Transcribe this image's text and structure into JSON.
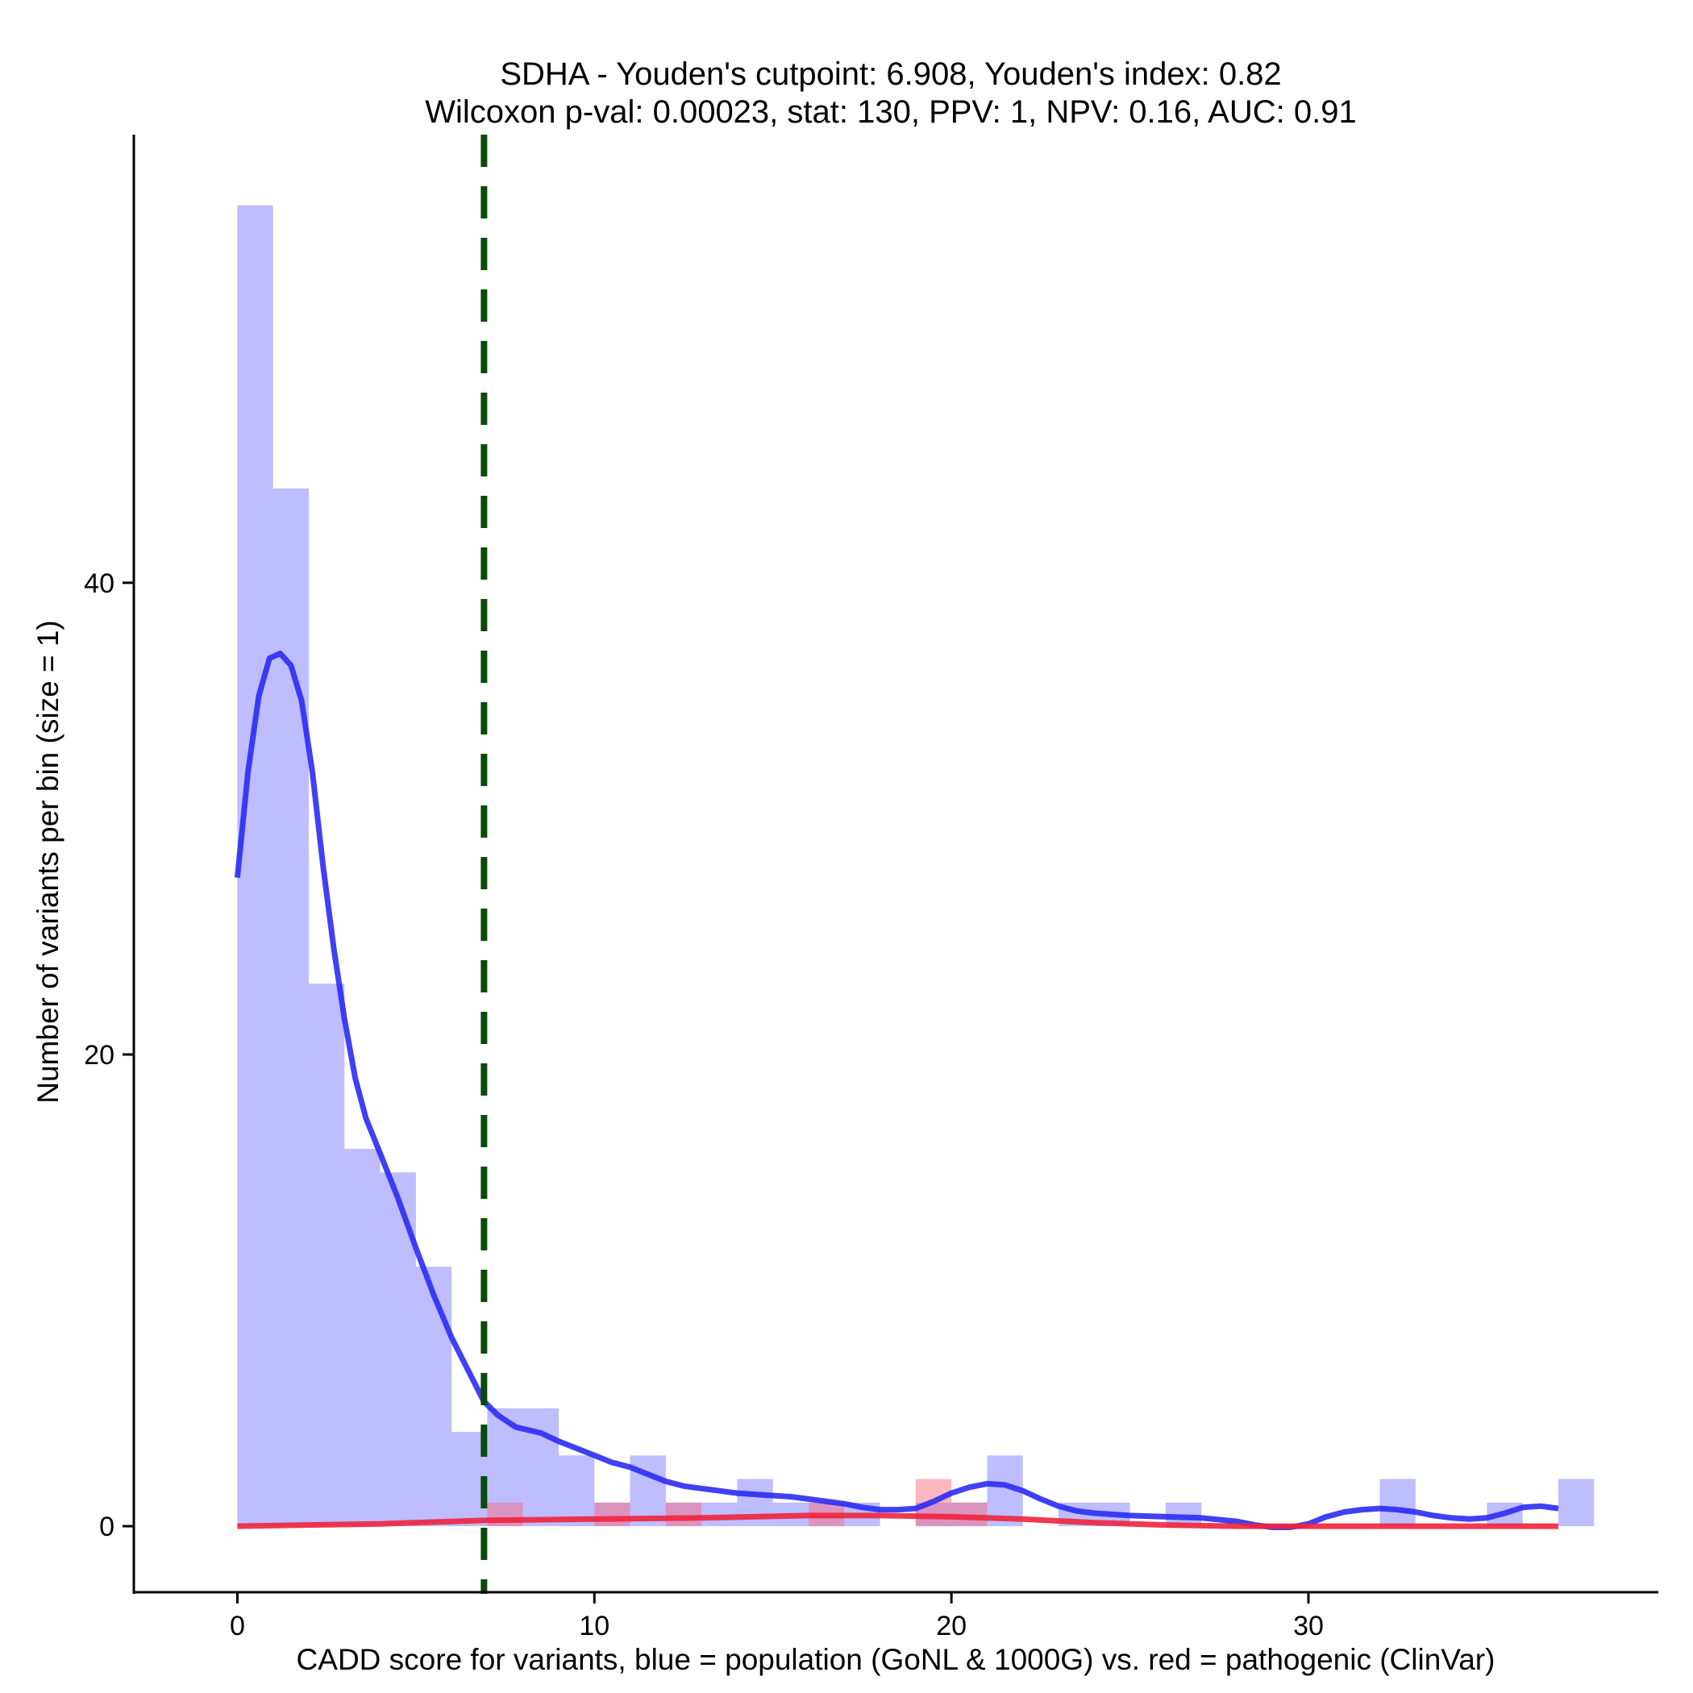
{
  "chart_data": {
    "type": "histogram",
    "title": "SDHA - Youden's cutpoint: 6.908, Youden's index: 0.82",
    "subtitle": "Wilcoxon p-val: 0.00023, stat: 130, PPV: 1, NPV: 0.16, AUC: 0.91",
    "xlabel": "CADD score for variants, blue = population (GoNL & 1000G) vs. red = pathogenic (ClinVar)",
    "ylabel": "Number of variants per bin (size = 1)",
    "xlim": [
      -2.9,
      39.8
    ],
    "ylim": [
      -2.8,
      59
    ],
    "x_ticks": [
      0,
      10,
      20,
      30
    ],
    "y_ticks": [
      0,
      20,
      40
    ],
    "cutpoint": {
      "x": 6.908,
      "color": "#0a4a0a",
      "style": "dashed"
    },
    "series": [
      {
        "name": "population (GoNL & 1000G)",
        "color": "#7b7bff",
        "bins": [
          {
            "x0": 0,
            "x1": 1,
            "count": 56
          },
          {
            "x0": 1,
            "x1": 2,
            "count": 44
          },
          {
            "x0": 2,
            "x1": 3,
            "count": 23
          },
          {
            "x0": 3,
            "x1": 4,
            "count": 16
          },
          {
            "x0": 4,
            "x1": 5,
            "count": 15
          },
          {
            "x0": 5,
            "x1": 6,
            "count": 11
          },
          {
            "x0": 6,
            "x1": 7,
            "count": 4
          },
          {
            "x0": 7,
            "x1": 8,
            "count": 5
          },
          {
            "x0": 8,
            "x1": 9,
            "count": 5
          },
          {
            "x0": 9,
            "x1": 10,
            "count": 3
          },
          {
            "x0": 10,
            "x1": 11,
            "count": 1
          },
          {
            "x0": 11,
            "x1": 12,
            "count": 3
          },
          {
            "x0": 12,
            "x1": 13,
            "count": 1
          },
          {
            "x0": 13,
            "x1": 14,
            "count": 1
          },
          {
            "x0": 14,
            "x1": 15,
            "count": 2
          },
          {
            "x0": 15,
            "x1": 16,
            "count": 1
          },
          {
            "x0": 16,
            "x1": 17,
            "count": 1
          },
          {
            "x0": 17,
            "x1": 18,
            "count": 1
          },
          {
            "x0": 19,
            "x1": 20,
            "count": 1
          },
          {
            "x0": 20,
            "x1": 21,
            "count": 1
          },
          {
            "x0": 21,
            "x1": 22,
            "count": 3
          },
          {
            "x0": 23,
            "x1": 24,
            "count": 1
          },
          {
            "x0": 24,
            "x1": 25,
            "count": 1
          },
          {
            "x0": 26,
            "x1": 27,
            "count": 1
          },
          {
            "x0": 32,
            "x1": 33,
            "count": 2
          },
          {
            "x0": 35,
            "x1": 36,
            "count": 1
          },
          {
            "x0": 37,
            "x1": 38,
            "count": 2
          }
        ],
        "density_curve": [
          [
            0,
            27.5
          ],
          [
            0.3,
            32
          ],
          [
            0.6,
            35.2
          ],
          [
            0.9,
            36.8
          ],
          [
            1.2,
            37
          ],
          [
            1.5,
            36.5
          ],
          [
            1.8,
            35
          ],
          [
            2.1,
            32
          ],
          [
            2.4,
            28
          ],
          [
            2.7,
            24.5
          ],
          [
            3.0,
            21.5
          ],
          [
            3.3,
            19
          ],
          [
            3.6,
            17.3
          ],
          [
            4.0,
            15.8
          ],
          [
            4.5,
            13.9
          ],
          [
            5.0,
            11.8
          ],
          [
            5.5,
            9.8
          ],
          [
            6.0,
            8
          ],
          [
            6.5,
            6.5
          ],
          [
            6.9,
            5.3
          ],
          [
            7.3,
            4.7
          ],
          [
            7.8,
            4.2
          ],
          [
            8.5,
            3.95
          ],
          [
            9.0,
            3.6
          ],
          [
            9.5,
            3.3
          ],
          [
            10.0,
            3.0
          ],
          [
            10.5,
            2.7
          ],
          [
            11.0,
            2.5
          ],
          [
            11.5,
            2.2
          ],
          [
            12.0,
            1.9
          ],
          [
            12.5,
            1.7
          ],
          [
            13.0,
            1.6
          ],
          [
            13.5,
            1.5
          ],
          [
            14.0,
            1.4
          ],
          [
            14.5,
            1.35
          ],
          [
            15.0,
            1.3
          ],
          [
            15.5,
            1.25
          ],
          [
            16.0,
            1.15
          ],
          [
            16.5,
            1.05
          ],
          [
            17.0,
            0.95
          ],
          [
            17.5,
            0.8
          ],
          [
            18.0,
            0.7
          ],
          [
            18.5,
            0.7
          ],
          [
            19.0,
            0.75
          ],
          [
            19.5,
            1.05
          ],
          [
            20.0,
            1.4
          ],
          [
            20.5,
            1.65
          ],
          [
            21.0,
            1.8
          ],
          [
            21.5,
            1.75
          ],
          [
            22.0,
            1.5
          ],
          [
            22.5,
            1.15
          ],
          [
            23.0,
            0.85
          ],
          [
            23.5,
            0.65
          ],
          [
            24.0,
            0.55
          ],
          [
            25.0,
            0.45
          ],
          [
            26.0,
            0.4
          ],
          [
            27.0,
            0.35
          ],
          [
            28.0,
            0.2
          ],
          [
            28.5,
            0.05
          ],
          [
            29.0,
            -0.05
          ],
          [
            29.5,
            -0.05
          ],
          [
            30.0,
            0.1
          ],
          [
            30.5,
            0.4
          ],
          [
            31.0,
            0.6
          ],
          [
            31.5,
            0.7
          ],
          [
            32.0,
            0.75
          ],
          [
            32.5,
            0.7
          ],
          [
            33.0,
            0.6
          ],
          [
            33.5,
            0.45
          ],
          [
            34.0,
            0.35
          ],
          [
            34.5,
            0.3
          ],
          [
            35.0,
            0.35
          ],
          [
            35.5,
            0.55
          ],
          [
            36.0,
            0.8
          ],
          [
            36.5,
            0.85
          ],
          [
            37.0,
            0.75
          ]
        ]
      },
      {
        "name": "pathogenic (ClinVar)",
        "color": "#ff6070",
        "bins": [
          {
            "x0": 7,
            "x1": 8,
            "count": 1
          },
          {
            "x0": 10,
            "x1": 11,
            "count": 1
          },
          {
            "x0": 12,
            "x1": 13,
            "count": 1
          },
          {
            "x0": 16,
            "x1": 17,
            "count": 1
          },
          {
            "x0": 19,
            "x1": 20,
            "count": 2
          },
          {
            "x0": 20,
            "x1": 21,
            "count": 1
          }
        ],
        "density_curve": [
          [
            0,
            0
          ],
          [
            2,
            0.05
          ],
          [
            4,
            0.1
          ],
          [
            6,
            0.2
          ],
          [
            7,
            0.25
          ],
          [
            10,
            0.3
          ],
          [
            13,
            0.35
          ],
          [
            16,
            0.45
          ],
          [
            18,
            0.45
          ],
          [
            20,
            0.4
          ],
          [
            22,
            0.3
          ],
          [
            24,
            0.15
          ],
          [
            26,
            0.05
          ],
          [
            28,
            0
          ],
          [
            30,
            0
          ],
          [
            37,
            0
          ]
        ]
      }
    ]
  }
}
